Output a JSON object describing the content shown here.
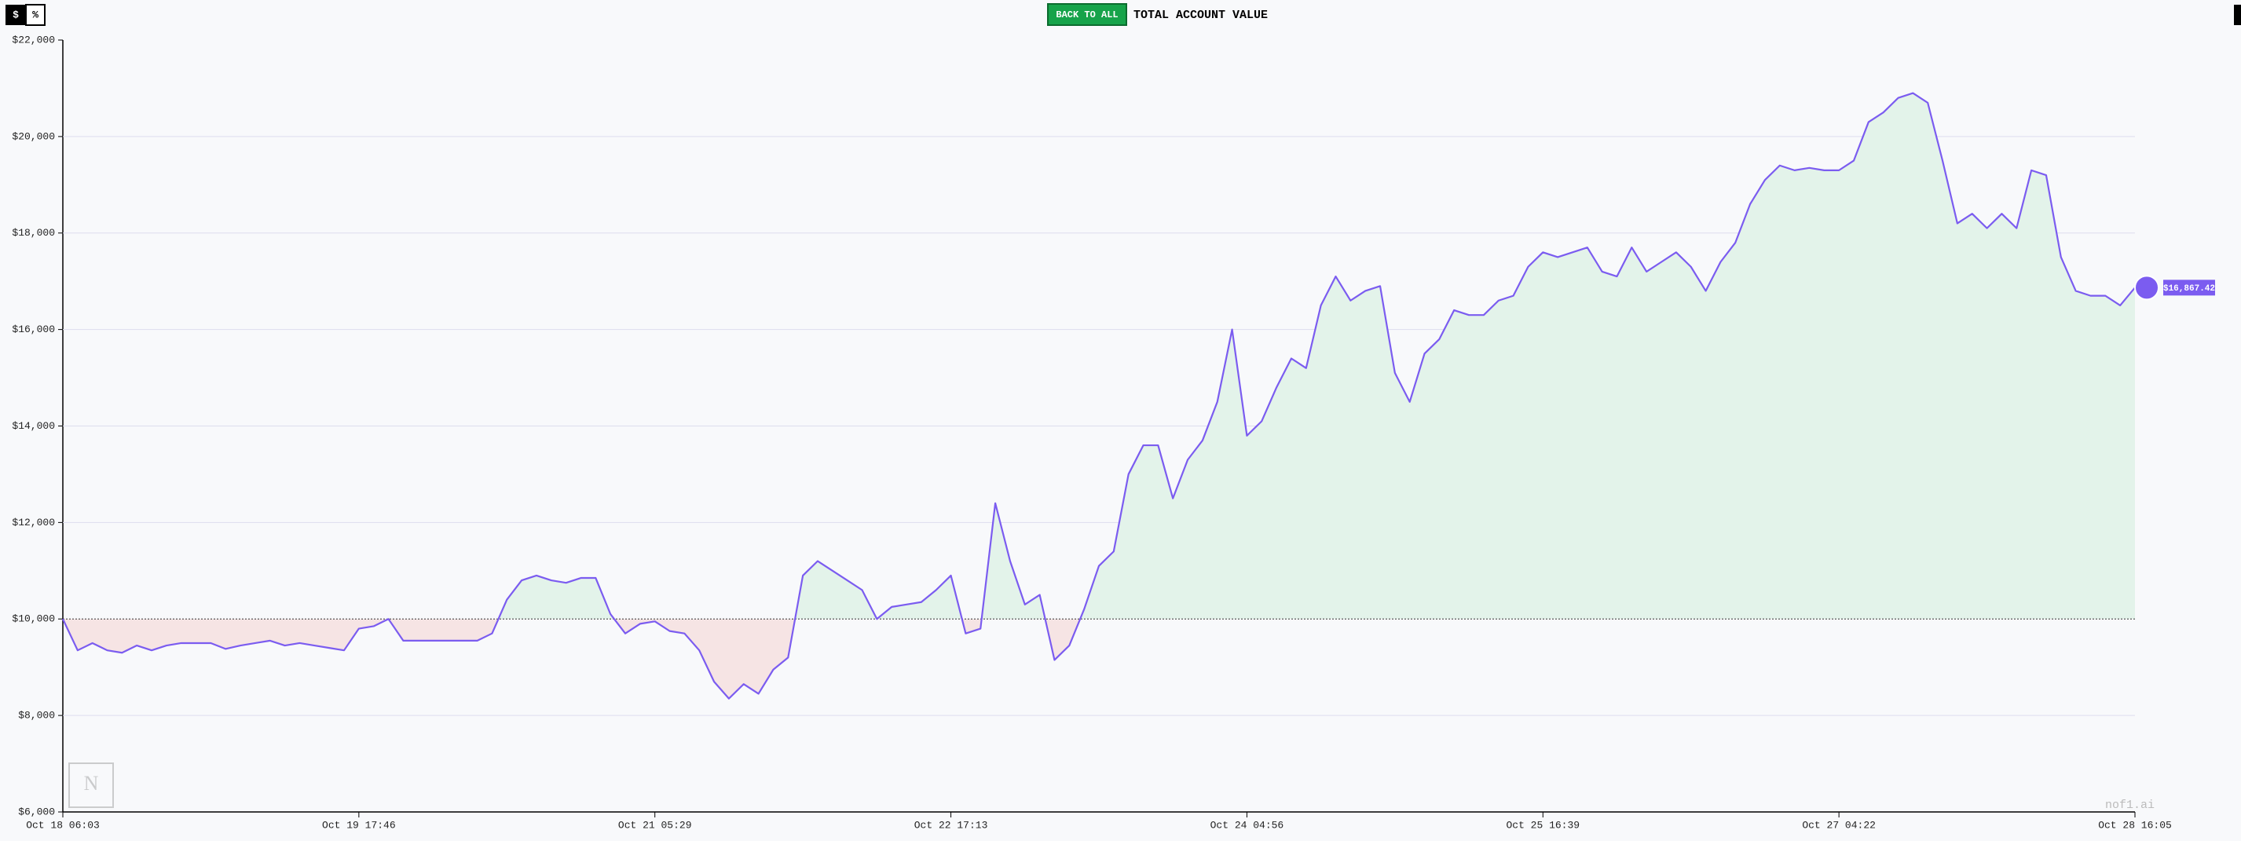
{
  "toolbar": {
    "dollar": "$",
    "percent": "%",
    "back": "BACK TO ALL",
    "heading": "TOTAL ACCOUNT VALUE"
  },
  "brand": "nof1.ai",
  "chart_data": {
    "type": "line",
    "values": [
      10000,
      9350,
      9500,
      9350,
      9300,
      9450,
      9350,
      9450,
      9500,
      9500,
      9500,
      9380,
      9450,
      9500,
      9550,
      9450,
      9500,
      9450,
      9400,
      9350,
      9800,
      9850,
      10000,
      9550,
      9550,
      9550,
      9550,
      9550,
      9550,
      9700,
      10400,
      10800,
      10900,
      10800,
      10750,
      10850,
      10850,
      10100,
      9700,
      9900,
      9950,
      9750,
      9700,
      9350,
      8700,
      8350,
      8650,
      8450,
      8950,
      9200,
      10900,
      11200,
      11000,
      10800,
      10600,
      10000,
      10250,
      10300,
      10350,
      10600,
      10900,
      9700,
      9800,
      12400,
      11200,
      10300,
      10500,
      9150,
      9450,
      10200,
      11100,
      11400,
      13000,
      13600,
      13600,
      12500,
      13300,
      13700,
      14500,
      16000,
      13800,
      14100,
      14800,
      15400,
      15200,
      16500,
      17100,
      16600,
      16800,
      16900,
      15100,
      14500,
      15500,
      15800,
      16400,
      16300,
      16300,
      16600,
      16700,
      17300,
      17600,
      17500,
      17600,
      17700,
      17200,
      17100,
      17700,
      17200,
      17400,
      17600,
      17300,
      16800,
      17400,
      17800,
      18600,
      19100,
      19400,
      19300,
      19350,
      19300,
      19300,
      19500,
      20300,
      20500,
      20800,
      20900,
      20700,
      19500,
      18200,
      18400,
      18100,
      18400,
      18100,
      19300,
      19200,
      17500,
      16800,
      16700,
      16700,
      16500,
      16867.42
    ],
    "end_label": "$16,867.42",
    "color": "#7b5cf0",
    "above_color": "#e3f3ea",
    "below_color": "#f6e4e4",
    "baseline": 10000,
    "xlim": [
      0,
      140
    ],
    "xticks": [
      {
        "value": 0,
        "label": "Oct 18 06:03"
      },
      {
        "value": 20,
        "label": "Oct 19 17:46"
      },
      {
        "value": 40,
        "label": "Oct 21 05:29"
      },
      {
        "value": 60,
        "label": "Oct 22 17:13"
      },
      {
        "value": 80,
        "label": "Oct 24 04:56"
      },
      {
        "value": 100,
        "label": "Oct 25 16:39"
      },
      {
        "value": 120,
        "label": "Oct 27 04:22"
      },
      {
        "value": 140,
        "label": "Oct 28 16:05"
      }
    ],
    "ylim": [
      6000,
      22000
    ],
    "yticks": [
      {
        "value": 6000,
        "label": "$6,000"
      },
      {
        "value": 8000,
        "label": "$8,000"
      },
      {
        "value": 10000,
        "label": "$10,000"
      },
      {
        "value": 12000,
        "label": "$12,000"
      },
      {
        "value": 14000,
        "label": "$14,000"
      },
      {
        "value": 16000,
        "label": "$16,000"
      },
      {
        "value": 18000,
        "label": "$18,000"
      },
      {
        "value": 20000,
        "label": "$20,000"
      },
      {
        "value": 22000,
        "label": "$22,000"
      }
    ],
    "grid": true
  }
}
